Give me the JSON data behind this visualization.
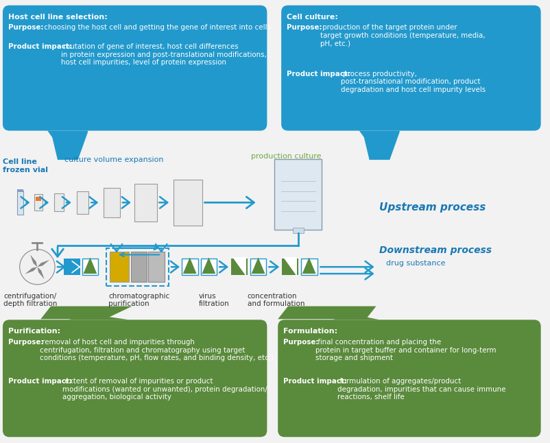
{
  "bg_color": "#f2f2f2",
  "blue": "#2299cc",
  "green": "#5a8a3c",
  "white": "#ffffff",
  "blue_label": "#1a78b4",
  "green_label": "#6aaa40",
  "dark_text": "#333333",
  "box1_title": "Host cell line selection:",
  "box1_line1b": "Purpose:",
  "box1_line1r": " choosing the host cell and getting the gene of interest into cells",
  "box1_line2b": "Product impact:",
  "box1_line2r": " mutation of gene of interest, host cell differences\nin protein expression and post-translational modifications,\nhost cell impurities, level of protein expression",
  "box2_title": "Cell culture:",
  "box2_line1b": "Purpose:",
  "box2_line1r": " production of the target protein under\ntarget growth conditions (temperature, media,\npH, etc.)",
  "box2_line2b": "Product impact:",
  "box2_line2r": " process productivity,\npost-translational modification, product\ndegradation and host cell impurity levels",
  "box3_title": "Purification:",
  "box3_line1b": "Purpose:",
  "box3_line1r": " removal of host cell and impurities through\ncentrifugation, filtration and chromatography using target\nconditions (temperature, pH, flow rates, and binding density, etc.)",
  "box3_line2b": "Product impact:",
  "box3_line2r": " extent of removal of impurities or product\nmodifications (wanted or unwanted), protein degradation/\naggregation, biological activity",
  "box4_title": "Formulation:",
  "box4_line1b": "Purpose:",
  "box4_line1r": " final concentration and placing the\nprotein in target buffer and container for long-term\nstorage and shipment",
  "box4_line2b": "Product impact:",
  "box4_line2r": " formulation of aggregates/product\ndegradation, impurities that can cause immune\nreactions, shelf life",
  "lbl_cellline": "Cell line\nfrozen vial",
  "lbl_culture": "culture volume expansion",
  "lbl_production": "production culture",
  "lbl_upstream": "Upstream process",
  "lbl_downstream": "Downstream process",
  "lbl_drug": "drug substance",
  "lbl_centrifuge": "centrifugation/\ndepth filtration",
  "lbl_chroma": "chromatographic\npurification",
  "lbl_virus": "virus\nfiltration",
  "lbl_conc": "concentration\nand formulation"
}
